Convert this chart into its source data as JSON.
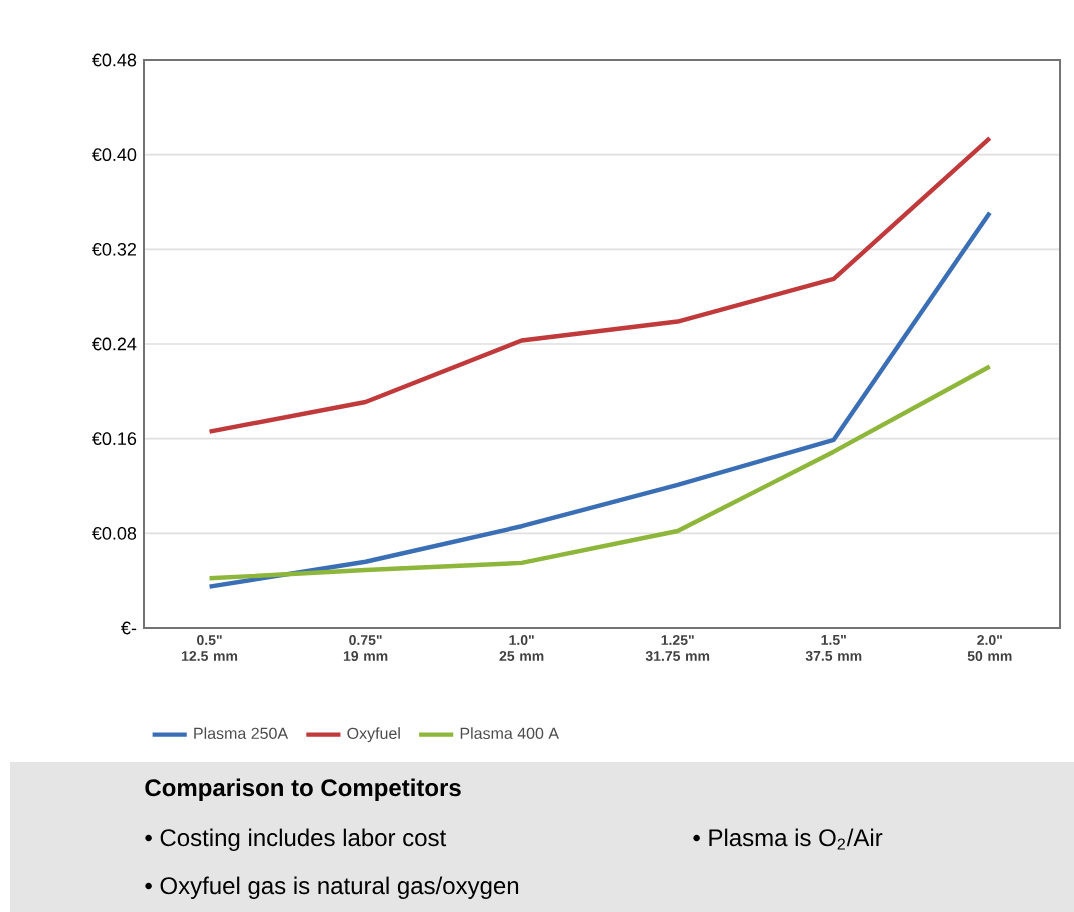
{
  "chart_data": {
    "type": "line",
    "categories": [
      "0.5\" 12.5 mm",
      "0.75\" 19 mm",
      "1.0\" 25 mm",
      "1.25\" 31.75 mm",
      "1.5\" 37.5 mm",
      "2.0\" 50 mm"
    ],
    "series": [
      {
        "name": "Plasma 250A",
        "color": "#3a6fb5",
        "values": [
          0.035,
          0.056,
          0.086,
          0.121,
          0.159,
          0.351
        ]
      },
      {
        "name": "Oxyfuel",
        "color": "#c0393b",
        "values": [
          0.166,
          0.191,
          0.243,
          0.259,
          0.295,
          0.414
        ]
      },
      {
        "name": "Plasma 400 A",
        "color": "#8db63a",
        "values": [
          0.042,
          0.049,
          0.055,
          0.082,
          0.149,
          0.221
        ]
      }
    ],
    "ylim": [
      0,
      0.48
    ],
    "yticks": [
      {
        "value": 0,
        "label": "€-"
      },
      {
        "value": 0.08,
        "label": "€0.08"
      },
      {
        "value": 0.16,
        "label": "€0.16"
      },
      {
        "value": 0.24,
        "label": "€0.24"
      },
      {
        "value": 0.32,
        "label": "€0.32"
      },
      {
        "value": 0.4,
        "label": "€0.40"
      },
      {
        "value": 0.48,
        "label": "€0.48"
      }
    ],
    "grid": "y",
    "legend": "bottom",
    "annotations": [
      "Comparison to Competitors",
      "• Costing includes labor cost",
      "• Plasma is O$_{2}$/Air",
      "• Oxyfuel gas is natural gas/oxygen"
    ]
  }
}
